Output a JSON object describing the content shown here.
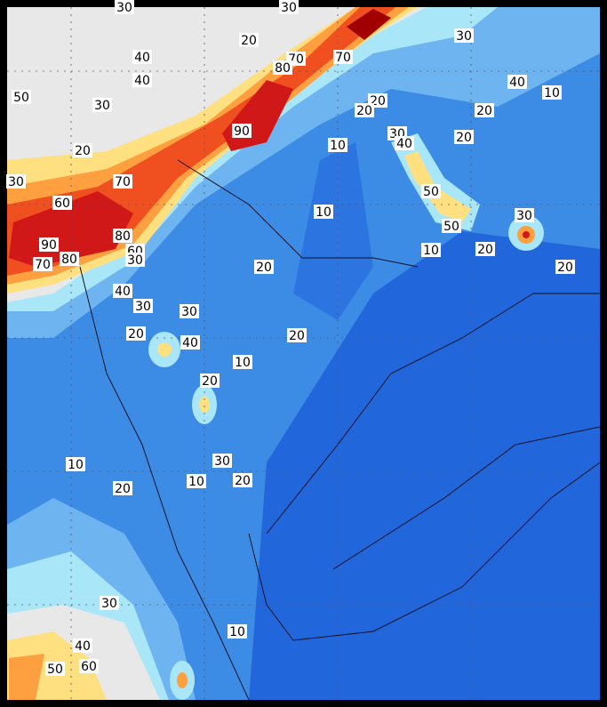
{
  "contour_labels": [
    30,
    30,
    20,
    40,
    40,
    30,
    70,
    80,
    70,
    50,
    30,
    20,
    20,
    20,
    40,
    10,
    90,
    30,
    40,
    20,
    20,
    10,
    30,
    70,
    60,
    10,
    50,
    30,
    50,
    80,
    60,
    30,
    90,
    80,
    70,
    20,
    10,
    20,
    20,
    40,
    30,
    30,
    40,
    20,
    20,
    10,
    20,
    30,
    10,
    20,
    10,
    20,
    30,
    10,
    40,
    50,
    60
  ]
}
